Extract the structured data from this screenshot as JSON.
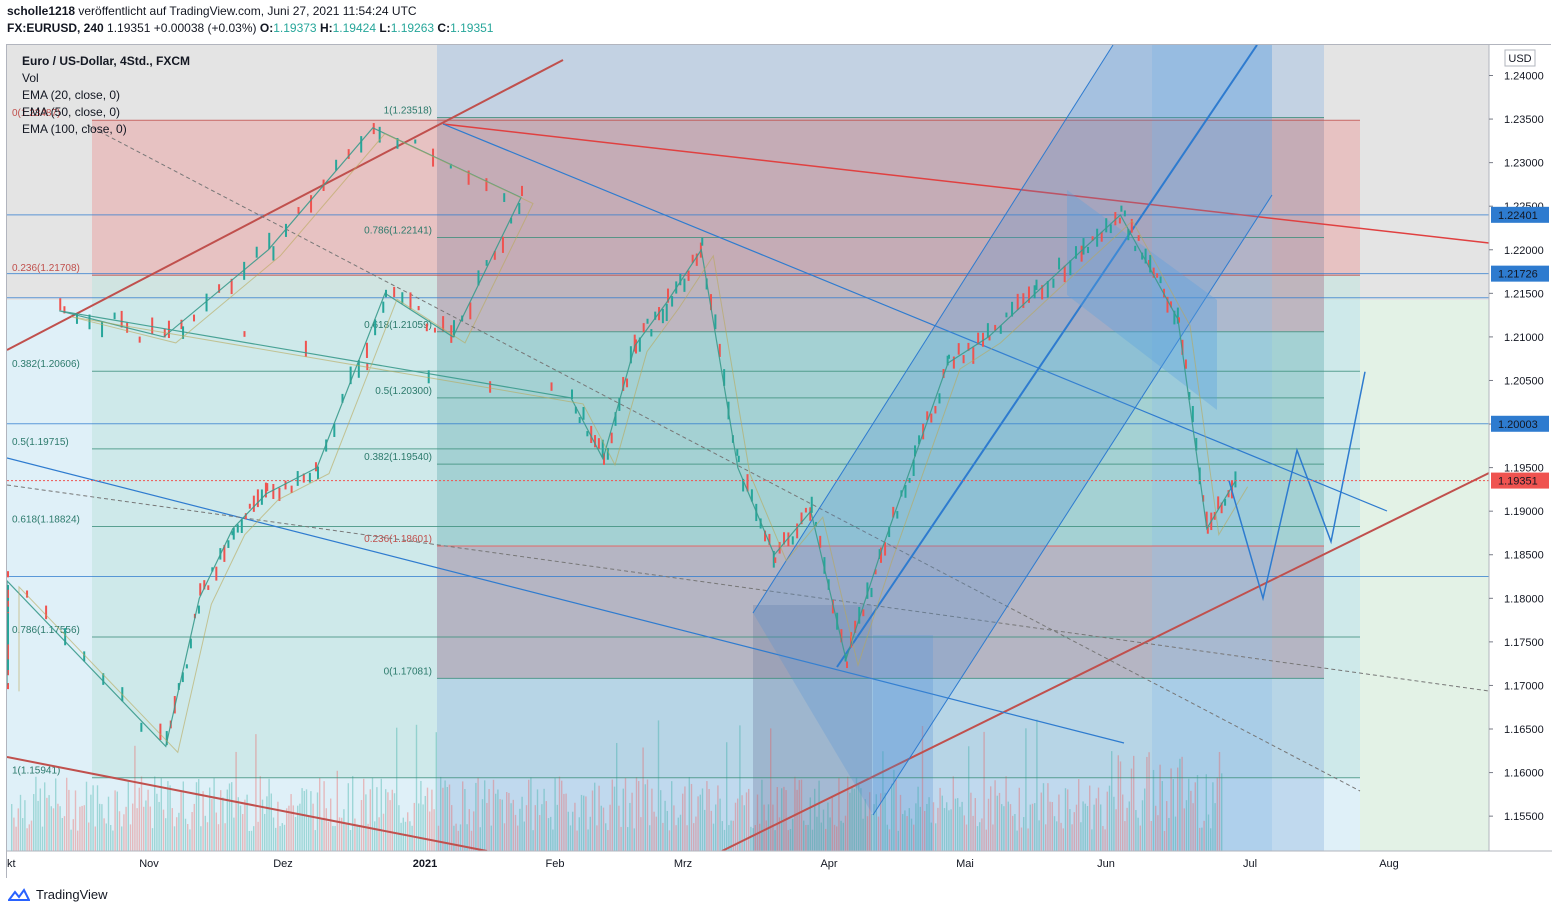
{
  "header": {
    "author": "scholle1218",
    "published_text": " veröffentlicht auf TradingView.com, Juni 27, 2021 11:54:24 UTC",
    "symbol": "FX:EURUSD, 240",
    "last": "1.19351",
    "change": "+0.00038 (+0.03%)",
    "o_label": "O:",
    "o_value": "1.19373",
    "h_label": "H:",
    "h_value": "1.19424",
    "l_label": "L:",
    "l_value": "1.19263",
    "c_label": "C:",
    "c_value": "1.19351"
  },
  "legend": {
    "title": "Euro / US-Dollar, 4Std., FXCM",
    "vol": "Vol",
    "ema20": "EMA (20, close, 0)",
    "ema50": "EMA (50, close, 0)",
    "ema100": "EMA (100, close, 0)"
  },
  "footer": {
    "brand": "TradingView"
  },
  "colors": {
    "bull": "#26a69a",
    "bear": "#ef5350",
    "trend_red": "#c0504d",
    "channel_blue": "#2e7bcf",
    "fib_pink": "#e6a6ad",
    "fib_teal": "#8fd1c4",
    "bg_grey": "#dcdcdc"
  },
  "chart_data": {
    "type": "line",
    "title": "Euro / US-Dollar, 4Std., FXCM",
    "currency": "USD",
    "ylim": [
      1.151,
      1.2435
    ],
    "y_ticks": [
      "1.24000",
      "1.23500",
      "1.23000",
      "1.22500",
      "1.22000",
      "1.21500",
      "1.21000",
      "1.20500",
      "1.20000",
      "1.19500",
      "1.19000",
      "1.18500",
      "1.18000",
      "1.17500",
      "1.17000",
      "1.16500",
      "1.16000",
      "1.15500"
    ],
    "x_ticks": [
      "kt",
      "Nov",
      "Dez",
      "2021",
      "Feb",
      "Mrz",
      "Apr",
      "Mai",
      "Jun",
      "Jul",
      "Aug"
    ],
    "price_badges": [
      {
        "value": "1.22401",
        "price": 1.22401,
        "color": "#2e7bcf"
      },
      {
        "value": "1.21726",
        "price": 1.21726,
        "color": "#2e7bcf"
      },
      {
        "value": "1.20003",
        "price": 1.20003,
        "color": "#2e7bcf"
      },
      {
        "value": "1.19351",
        "price": 1.19351,
        "color": "#ef5350"
      }
    ],
    "fib_left": [
      {
        "label": "0(1.23487)",
        "price": 1.23487
      },
      {
        "label": "0.236(1.21708)",
        "price": 1.21708
      },
      {
        "label": "0.382(1.20606)",
        "price": 1.20606
      },
      {
        "label": "0.5(1.19715)",
        "price": 1.19715
      },
      {
        "label": "0.618(1.18824)",
        "price": 1.18824
      },
      {
        "label": "0.786(1.17556)",
        "price": 1.17556
      },
      {
        "label": "1(1.15941)",
        "price": 1.15941
      }
    ],
    "fib_right": [
      {
        "label": "1(1.23518)",
        "price": 1.23518
      },
      {
        "label": "0.786(1.22141)",
        "price": 1.22141
      },
      {
        "label": "0.618(1.21059)",
        "price": 1.21059
      },
      {
        "label": "0.5(1.20300)",
        "price": 1.203
      },
      {
        "label": "0.382(1.19540)",
        "price": 1.1954
      },
      {
        "label": "0.236(1.18601)",
        "price": 1.18601
      },
      {
        "label": "0(1.17081)",
        "price": 1.17081
      }
    ],
    "series": [
      {
        "name": "EURUSD",
        "points": [
          [
            "Okt",
            1.176
          ],
          [
            "Okt",
            1.18
          ],
          [
            "Okt",
            1.17
          ],
          [
            "Okt",
            1.182
          ],
          [
            "Nov",
            1.163
          ],
          [
            "Nov",
            1.18
          ],
          [
            "Nov",
            1.188
          ],
          [
            "Nov",
            1.192
          ],
          [
            "Dez",
            1.195
          ],
          [
            "Dez",
            1.215
          ],
          [
            "Dez",
            1.21
          ],
          [
            "Dez",
            1.226
          ],
          [
            "2021",
            1.234
          ],
          [
            "2021",
            1.22
          ],
          [
            "2021",
            1.21
          ],
          [
            "2021",
            1.213
          ],
          [
            "Feb",
            1.203
          ],
          [
            "Feb",
            1.196
          ],
          [
            "Feb",
            1.209
          ],
          [
            "Feb",
            1.214
          ],
          [
            "Mrz",
            1.22
          ],
          [
            "Mrz",
            1.195
          ],
          [
            "Mrz",
            1.185
          ],
          [
            "Mrz",
            1.19
          ],
          [
            "Apr",
            1.173
          ],
          [
            "Apr",
            1.185
          ],
          [
            "Apr",
            1.196
          ],
          [
            "Apr",
            1.207
          ],
          [
            "Mai",
            1.21
          ],
          [
            "Mai",
            1.215
          ],
          [
            "Mai",
            1.22
          ],
          [
            "Jun",
            1.224
          ],
          [
            "Jun",
            1.218
          ],
          [
            "Jun",
            1.212
          ],
          [
            "Jun",
            1.188
          ],
          [
            "Jun",
            1.1935
          ]
        ]
      }
    ],
    "projection": [
      [
        "Jul",
        1.1935
      ],
      [
        "Jul",
        1.18
      ],
      [
        "Jul",
        1.197
      ],
      [
        "Jul",
        1.1865
      ],
      [
        "Aug",
        1.206
      ]
    ],
    "grid": false
  }
}
